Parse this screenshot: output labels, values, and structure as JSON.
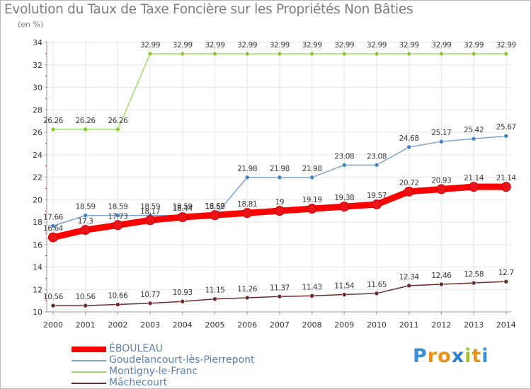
{
  "title": "Evolution du Taux de Taxe Foncière sur les Propriétés Non Bâties",
  "subtitle": "(en %)",
  "logo": {
    "text": "Proxiti"
  },
  "colors": {
    "grid": "#e6e6e6",
    "axis": "#999999",
    "tick_mark": "#cc0000"
  },
  "chart_data": {
    "type": "line",
    "title": "Evolution du Taux de Taxe Foncière sur les Propriétés Non Bâties",
    "ylabel": "(en %)",
    "xlabel": "",
    "x": [
      "2000",
      "2001",
      "2002",
      "2003",
      "2004",
      "2005",
      "2006",
      "2007",
      "2008",
      "2009",
      "2010",
      "2011",
      "2012",
      "2013",
      "2014"
    ],
    "ylim": [
      10,
      34
    ],
    "yticks": [
      "10",
      "12",
      "14",
      "16",
      "18",
      "20",
      "22",
      "24",
      "26",
      "28",
      "30",
      "32",
      "34"
    ],
    "grid": true,
    "legend_position": "bottom-left",
    "series": [
      {
        "name": "ÉBOULEAU",
        "color": "#ff0000",
        "marker_color": "#e8141a",
        "values": [
          16.64,
          17.3,
          17.73,
          18.17,
          18.44,
          18.62,
          18.81,
          19,
          19.19,
          19.38,
          19.57,
          20.72,
          20.93,
          21.14,
          21.14
        ],
        "labels": [
          "16.64",
          "17.3",
          "17.73",
          "18.17",
          "18.44",
          "18.62",
          "18.81",
          "19",
          "19.19",
          "19.38",
          "19.57",
          "20.72",
          "20.93",
          "21.14",
          "21.14"
        ]
      },
      {
        "name": "Goudelancourt-lès-Pierrepont",
        "color": "#7ba3cf",
        "marker_color": "#3d82c4",
        "values": [
          17.66,
          18.59,
          18.59,
          18.59,
          18.59,
          18.59,
          21.98,
          21.98,
          21.98,
          23.08,
          23.08,
          24.68,
          25.17,
          25.42,
          25.67
        ],
        "labels": [
          "17.66",
          "18.59",
          "18.59",
          "18.59",
          "18.59",
          "18.59",
          "21.98",
          "21.98",
          "21.98",
          "23.08",
          "23.08",
          "24.68",
          "25.17",
          "25.42",
          "25.67"
        ]
      },
      {
        "name": "Montigny-le-Franc",
        "color": "#99dd66",
        "marker_color": "#88cc33",
        "values": [
          26.26,
          26.26,
          26.26,
          32.99,
          32.99,
          32.99,
          32.99,
          32.99,
          32.99,
          32.99,
          32.99,
          32.99,
          32.99,
          32.99,
          32.99
        ],
        "labels": [
          "26.26",
          "26.26",
          "26.26",
          "32.99",
          "32.99",
          "32.99",
          "32.99",
          "32.99",
          "32.99",
          "32.99",
          "32.99",
          "32.99",
          "32.99",
          "32.99",
          "32.99"
        ]
      },
      {
        "name": "Mâchecourt",
        "color": "#6b2a2a",
        "marker_color": "#6b2a2a",
        "values": [
          10.56,
          10.56,
          10.66,
          10.77,
          10.93,
          11.15,
          11.26,
          11.37,
          11.43,
          11.54,
          11.65,
          12.34,
          12.46,
          12.58,
          12.7
        ],
        "labels": [
          "10.56",
          "10.56",
          "10.66",
          "10.77",
          "10.93",
          "11.15",
          "11.26",
          "11.37",
          "11.43",
          "11.54",
          "11.65",
          "12.34",
          "12.46",
          "12.58",
          "12.7"
        ]
      }
    ]
  }
}
